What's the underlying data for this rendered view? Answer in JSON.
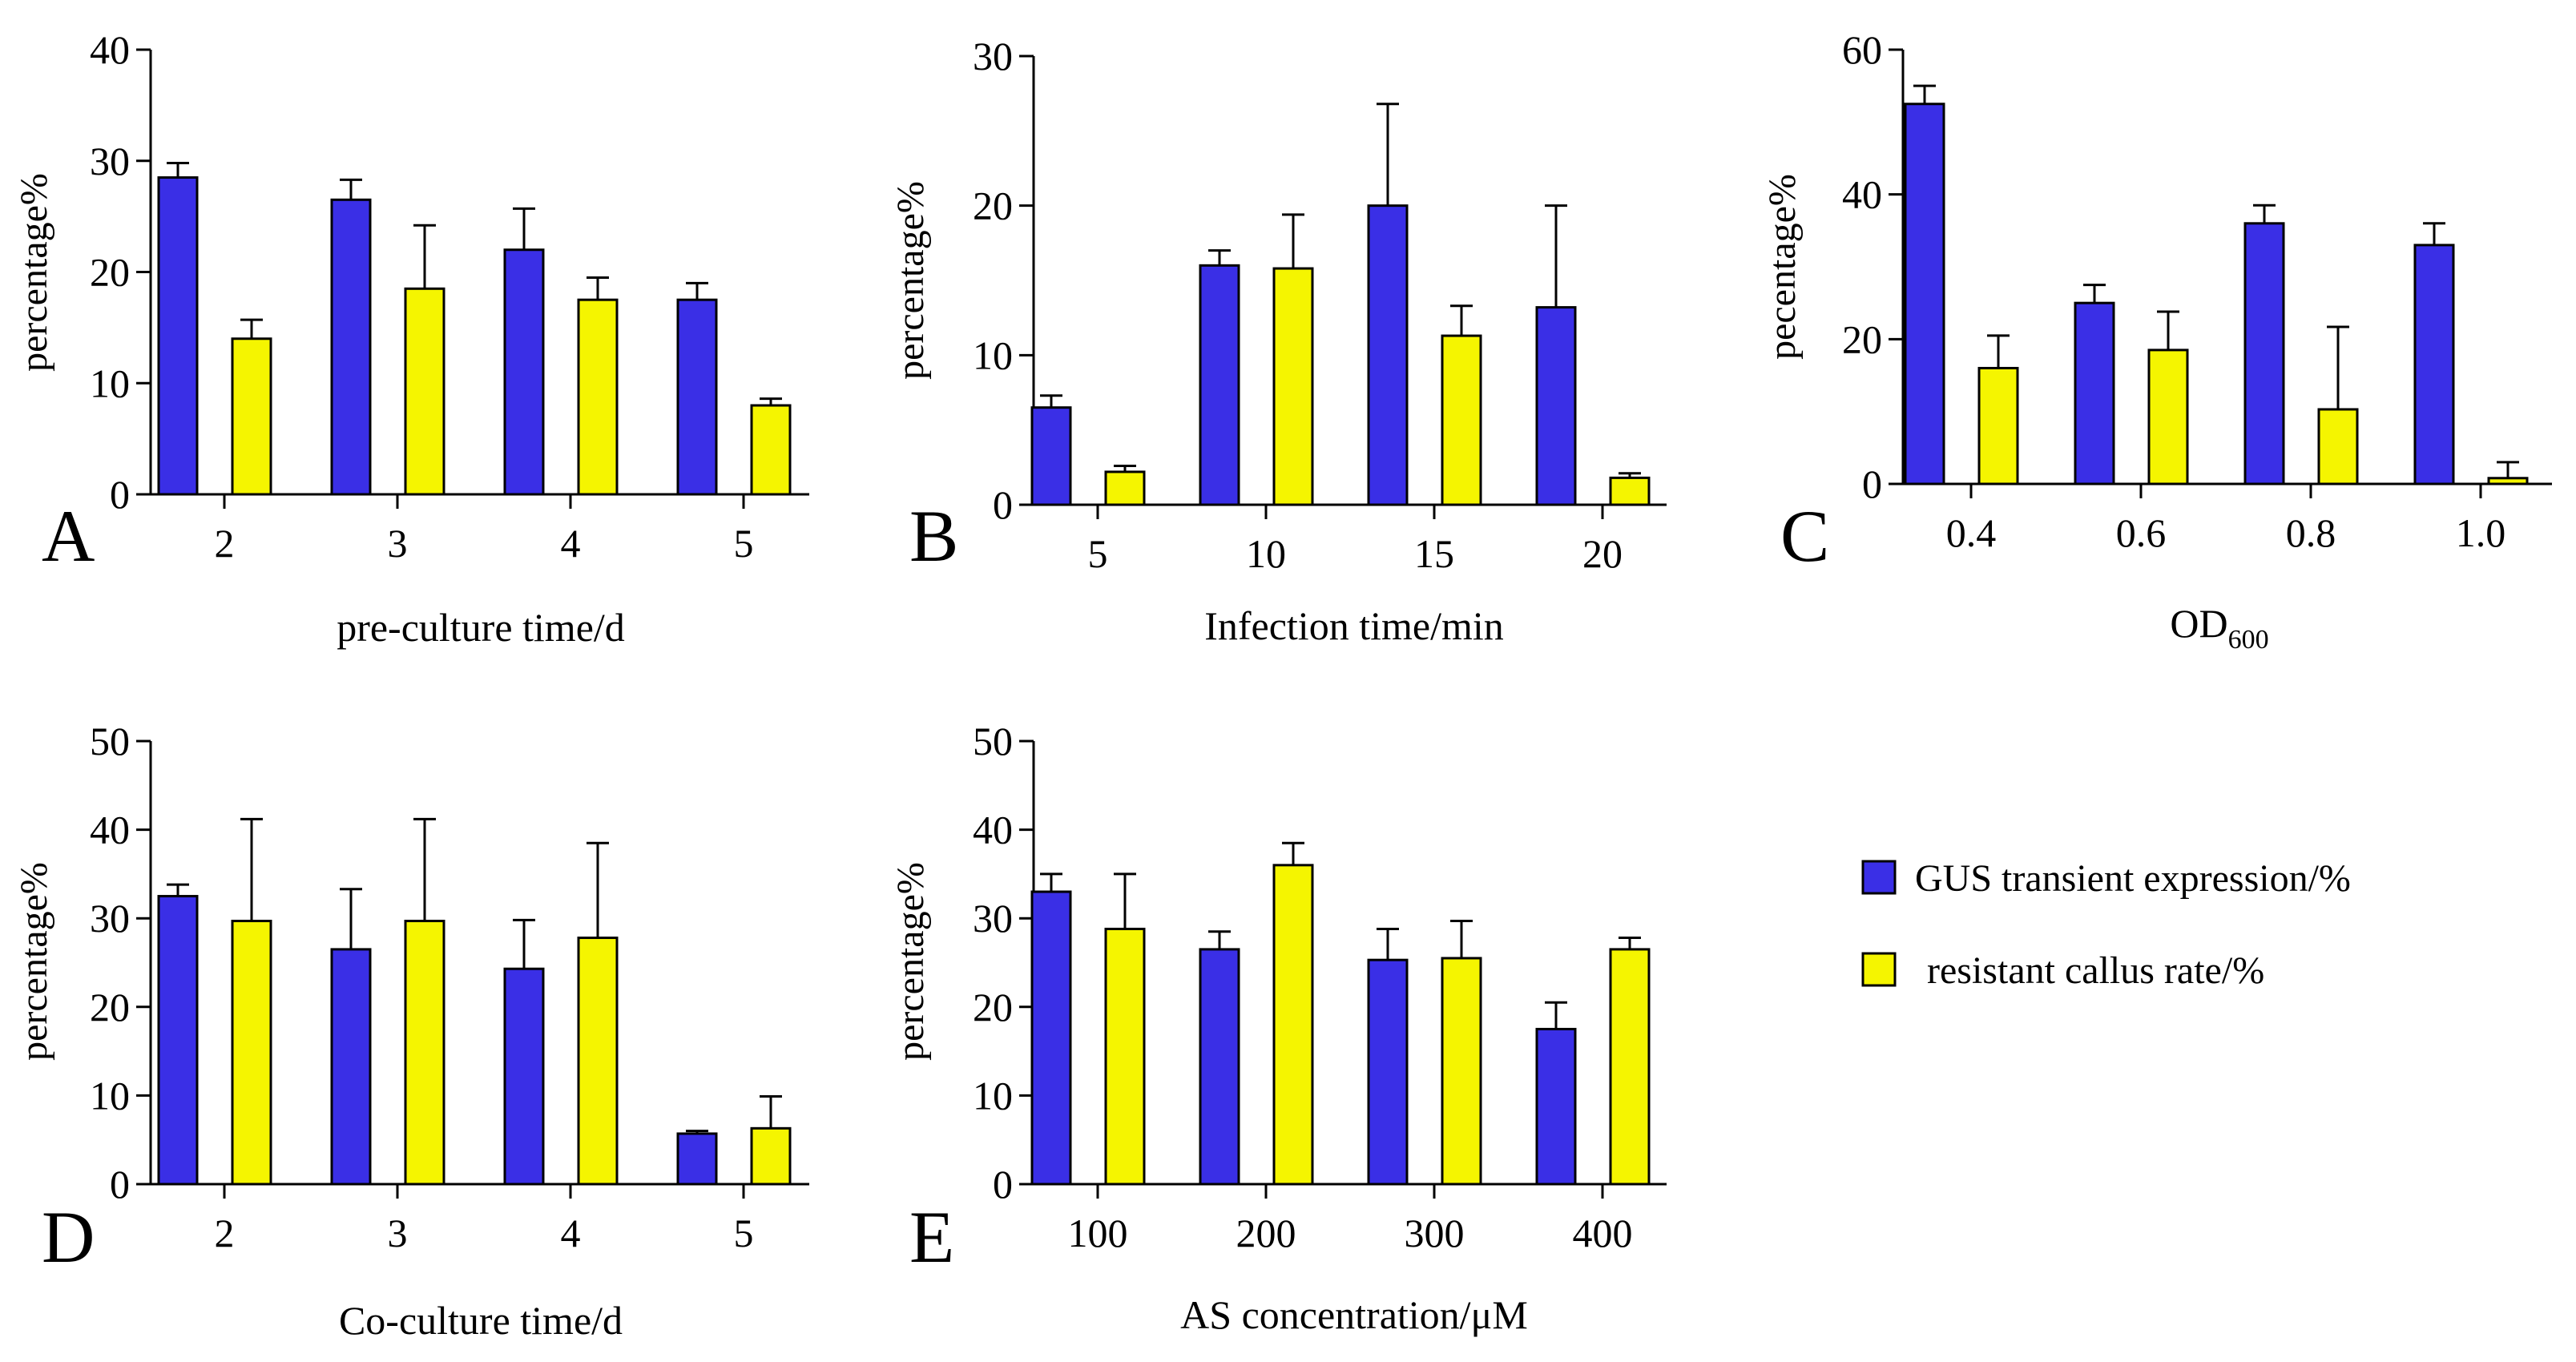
{
  "colors": {
    "gus": "#3a2fe6",
    "callus": "#f5f500",
    "axis": "#000000"
  },
  "legend": {
    "gus_label": "GUS transient expression/%",
    "callus_label": "resistant callus rate/%"
  },
  "chart_data": [
    {
      "type": "bar",
      "panel_letter": "A",
      "title": "",
      "xlabel": "pre-culture time/d",
      "xlabel_sub": "",
      "ylabel": "percentage%",
      "categories": [
        "2",
        "3",
        "4",
        "5"
      ],
      "ylim": [
        0,
        40
      ],
      "yticks": [
        "0",
        "10",
        "20",
        "30",
        "40"
      ],
      "series": [
        {
          "name": "GUS transient expression/%",
          "values": [
            28.5,
            26.5,
            22,
            17.5
          ],
          "errors": [
            1.3,
            1.8,
            3.7,
            1.5
          ]
        },
        {
          "name": "resistant callus rate/%",
          "values": [
            14,
            18.5,
            17.5,
            8
          ],
          "errors": [
            1.7,
            5.7,
            2,
            0.6
          ]
        }
      ]
    },
    {
      "type": "bar",
      "panel_letter": "B",
      "title": "",
      "xlabel": "Infection time/min",
      "xlabel_sub": "",
      "ylabel": "percentage%",
      "categories": [
        "5",
        "10",
        "15",
        "20"
      ],
      "ylim": [
        0,
        30
      ],
      "yticks": [
        "0",
        "10",
        "20",
        "30"
      ],
      "series": [
        {
          "name": "GUS transient expression/%",
          "values": [
            6.5,
            16,
            20,
            13.2
          ],
          "errors": [
            0.8,
            1,
            6.8,
            6.8
          ]
        },
        {
          "name": "resistant callus rate/%",
          "values": [
            2.2,
            15.8,
            11.3,
            1.8
          ],
          "errors": [
            0.4,
            3.6,
            2,
            0.3
          ]
        }
      ]
    },
    {
      "type": "bar",
      "panel_letter": "C",
      "title": "",
      "xlabel": "OD",
      "xlabel_sub": "600",
      "ylabel": "pecentage%",
      "categories": [
        "0.4",
        "0.6",
        "0.8",
        "1.0"
      ],
      "ylim": [
        0,
        60
      ],
      "yticks": [
        "0",
        "20",
        "40",
        "60"
      ],
      "series": [
        {
          "name": "GUS transient expression/%",
          "values": [
            52.5,
            25,
            36,
            33
          ],
          "errors": [
            2.5,
            2.5,
            2.5,
            3
          ]
        },
        {
          "name": "resistant callus rate/%",
          "values": [
            16,
            18.5,
            10.3,
            0.8
          ],
          "errors": [
            4.5,
            5.3,
            11.4,
            2.2
          ]
        }
      ]
    },
    {
      "type": "bar",
      "panel_letter": "D",
      "title": "",
      "xlabel": "Co-culture time/d",
      "xlabel_sub": "",
      "ylabel": "percentage%",
      "categories": [
        "2",
        "3",
        "4",
        "5"
      ],
      "ylim": [
        0,
        50
      ],
      "yticks": [
        "0",
        "10",
        "20",
        "30",
        "40",
        "50"
      ],
      "series": [
        {
          "name": "GUS transient expression/%",
          "values": [
            32.5,
            26.5,
            24.3,
            5.7
          ],
          "errors": [
            1.3,
            6.8,
            5.5,
            0.3
          ]
        },
        {
          "name": "resistant callus rate/%",
          "values": [
            29.7,
            29.7,
            27.8,
            6.3
          ],
          "errors": [
            11.5,
            11.5,
            10.7,
            3.6
          ]
        }
      ]
    },
    {
      "type": "bar",
      "panel_letter": "E",
      "title": "",
      "xlabel": "AS concentration/μM",
      "xlabel_sub": "",
      "ylabel": "percentage%",
      "categories": [
        "100",
        "200",
        "300",
        "400"
      ],
      "ylim": [
        0,
        50
      ],
      "yticks": [
        "0",
        "10",
        "20",
        "30",
        "40",
        "50"
      ],
      "series": [
        {
          "name": "GUS transient expression/%",
          "values": [
            33,
            26.5,
            25.3,
            17.5
          ],
          "errors": [
            2,
            2,
            3.5,
            3
          ]
        },
        {
          "name": "resistant callus rate/%",
          "values": [
            28.8,
            36,
            25.5,
            26.5
          ],
          "errors": [
            6.2,
            2.5,
            4.2,
            1.3
          ]
        }
      ]
    }
  ]
}
